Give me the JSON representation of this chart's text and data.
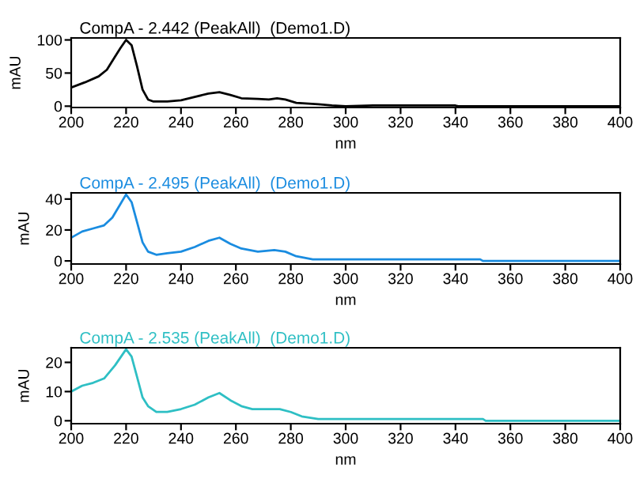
{
  "chart_data": [
    {
      "type": "line",
      "title": "CompA - 2.442 (PeakAll)  (Demo1.D)",
      "xlabel": "nm",
      "ylabel": "mAU",
      "xlim": [
        200,
        400
      ],
      "xticks": [
        200,
        220,
        240,
        260,
        280,
        300,
        320,
        340,
        360,
        380,
        400
      ],
      "ylim": [
        -2,
        103
      ],
      "yticks": [
        0,
        50,
        100
      ],
      "grid": false,
      "marker": "none",
      "line_style": "solid",
      "series": [
        {
          "color": "#000000",
          "x": [
            200,
            205,
            210,
            213,
            216,
            218,
            220,
            222,
            224,
            226,
            228,
            230,
            235,
            240,
            245,
            250,
            254,
            258,
            262,
            268,
            272,
            275,
            278,
            282,
            290,
            295,
            300,
            310,
            320,
            340,
            341,
            400
          ],
          "values": [
            28,
            36,
            45,
            55,
            75,
            88,
            100,
            92,
            60,
            25,
            10,
            7,
            7,
            9,
            14,
            19,
            21,
            17,
            12,
            11,
            10,
            12,
            10,
            5,
            3,
            1,
            0,
            1,
            1,
            1,
            0,
            0
          ]
        }
      ]
    },
    {
      "type": "line",
      "title": "CompA - 2.495 (PeakAll)  (Demo1.D)",
      "xlabel": "nm",
      "ylabel": "mAU",
      "xlim": [
        200,
        400
      ],
      "xticks": [
        200,
        220,
        240,
        260,
        280,
        300,
        320,
        340,
        360,
        380,
        400
      ],
      "ylim": [
        -2,
        44
      ],
      "yticks": [
        0,
        20,
        40
      ],
      "grid": false,
      "marker": "none",
      "line_style": "solid",
      "series": [
        {
          "color": "#1a8ce0",
          "x": [
            200,
            204,
            208,
            212,
            215,
            218,
            220,
            222,
            224,
            226,
            228,
            231,
            235,
            240,
            245,
            250,
            254,
            258,
            262,
            268,
            274,
            278,
            282,
            288,
            290,
            349,
            350,
            400
          ],
          "values": [
            15,
            19,
            21,
            23,
            28,
            37,
            43,
            38,
            25,
            12,
            6,
            4,
            5,
            6,
            9,
            13,
            15,
            11,
            8,
            6,
            7,
            6,
            3,
            1,
            1,
            1,
            0,
            0
          ]
        }
      ]
    },
    {
      "type": "line",
      "title": "CompA - 2.535 (PeakAll)  (Demo1.D)",
      "xlabel": "nm",
      "ylabel": "mAU",
      "xlim": [
        200,
        400
      ],
      "xticks": [
        200,
        220,
        240,
        260,
        280,
        300,
        320,
        340,
        360,
        380,
        400
      ],
      "ylim": [
        -1,
        25
      ],
      "yticks": [
        0,
        10,
        20
      ],
      "grid": false,
      "marker": "none",
      "line_style": "solid",
      "series": [
        {
          "color": "#2ebfc4",
          "x": [
            200,
            204,
            208,
            212,
            216,
            220,
            222,
            224,
            226,
            228,
            231,
            235,
            240,
            245,
            250,
            254,
            258,
            262,
            266,
            276,
            280,
            284,
            290,
            350,
            351,
            400
          ],
          "values": [
            10,
            12,
            13,
            14.5,
            19,
            24.5,
            22,
            15,
            8,
            5,
            3,
            3,
            4,
            5.5,
            8,
            9.5,
            7,
            5,
            4,
            4,
            3,
            1.5,
            0.6,
            0.6,
            0,
            0
          ]
        }
      ]
    }
  ]
}
